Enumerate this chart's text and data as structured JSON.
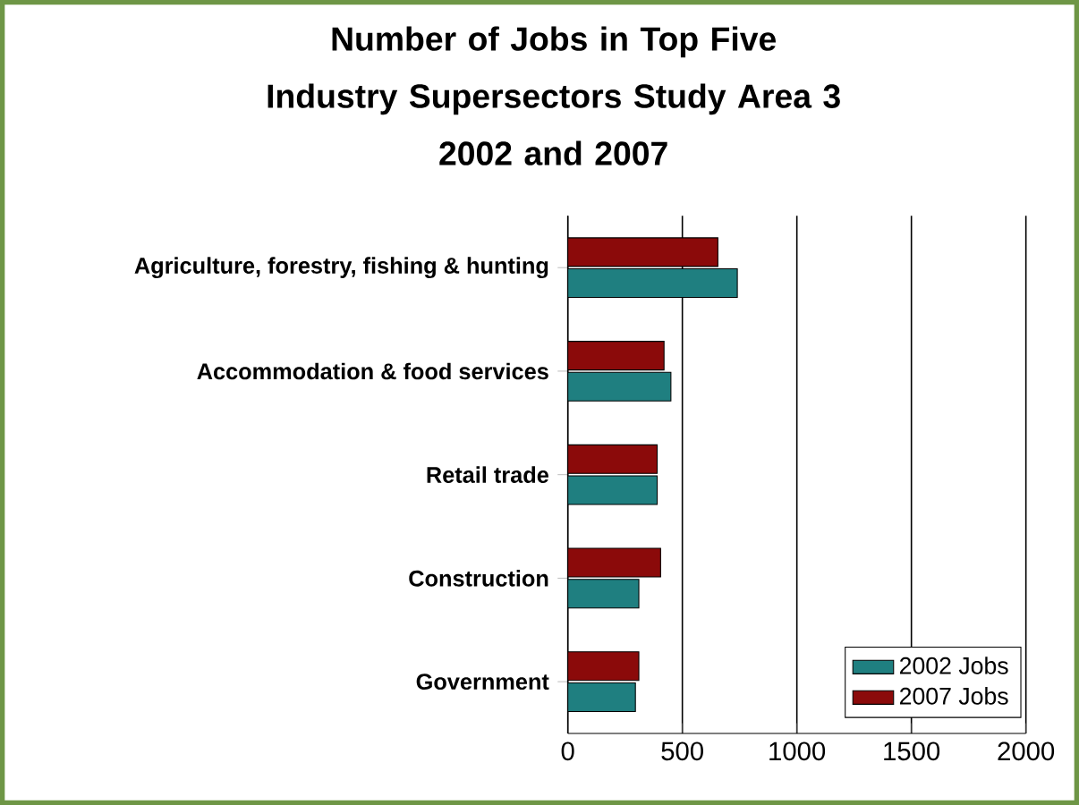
{
  "chart_data": {
    "type": "bar",
    "orientation": "horizontal",
    "title": "Number of Jobs in Top Five Industry Supersectors Study Area 3",
    "subtitle": "2002 and 2007",
    "categories": [
      "Agriculture, forestry, fishing & hunting",
      "Accommodation & food services",
      "Retail trade",
      "Construction",
      "Government"
    ],
    "series": [
      {
        "name": "2002 Jobs",
        "color": "#1f7f80",
        "values": [
          740,
          450,
          390,
          310,
          295
        ]
      },
      {
        "name": "2007 Jobs",
        "color": "#8b0a0a",
        "values": [
          655,
          420,
          390,
          405,
          310
        ]
      }
    ],
    "xlim": [
      0,
      2000
    ],
    "xticks": [
      0,
      500,
      1000,
      1500,
      2000
    ],
    "grid": "x",
    "legend": "bottom right"
  }
}
